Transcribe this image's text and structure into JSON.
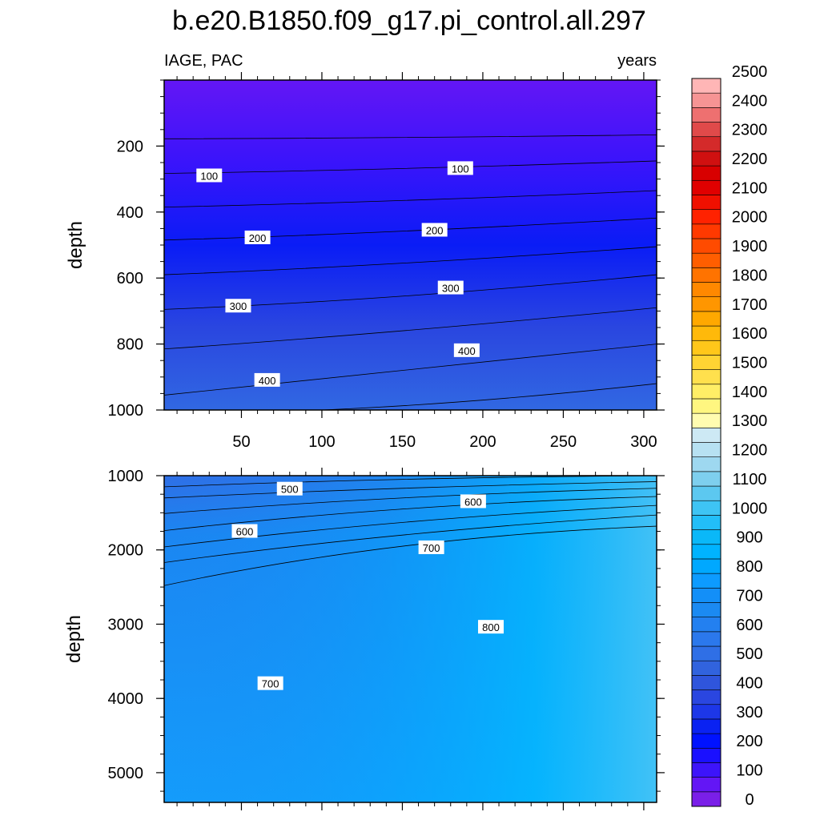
{
  "figure": {
    "title": "b.e20.B1850.f09_g17.pi_control.all.297",
    "left_string": "IAGE, PAC",
    "right_string": "years"
  },
  "chart_data": [
    {
      "type": "contour",
      "name": "upper-panel",
      "xlabel": "",
      "ylabel": "depth",
      "xlim": [
        2,
        308
      ],
      "ylim": [
        1000,
        0
      ],
      "y_ticks": [
        200,
        400,
        600,
        800,
        1000
      ],
      "x_ticks": [
        50,
        100,
        150,
        200,
        250,
        300
      ],
      "contour_lines": [
        {
          "value": 50,
          "x": [
            2,
            150,
            308
          ],
          "y": [
            178,
            174,
            166
          ]
        },
        {
          "value": 100,
          "x": [
            2,
            150,
            308
          ],
          "y": [
            283,
            268,
            245
          ]
        },
        {
          "value": 150,
          "x": [
            2,
            150,
            308
          ],
          "y": [
            385,
            365,
            335
          ]
        },
        {
          "value": 200,
          "x": [
            2,
            150,
            308
          ],
          "y": [
            485,
            458,
            418
          ]
        },
        {
          "value": 250,
          "x": [
            2,
            150,
            308
          ],
          "y": [
            590,
            555,
            505
          ]
        },
        {
          "value": 300,
          "x": [
            2,
            150,
            308
          ],
          "y": [
            695,
            655,
            590
          ]
        },
        {
          "value": 350,
          "x": [
            2,
            150,
            308
          ],
          "y": [
            815,
            760,
            690
          ]
        },
        {
          "value": 400,
          "x": [
            2,
            150,
            308
          ],
          "y": [
            955,
            880,
            800
          ]
        },
        {
          "value": 450,
          "x": [
            100,
            200,
            308
          ],
          "y": [
            1000,
            970,
            920
          ]
        }
      ],
      "line_labels": [
        {
          "text": "100",
          "x": 30,
          "y": 290
        },
        {
          "text": "100",
          "x": 186,
          "y": 268
        },
        {
          "text": "200",
          "x": 60,
          "y": 478
        },
        {
          "text": "200",
          "x": 170,
          "y": 455
        },
        {
          "text": "300",
          "x": 48,
          "y": 685
        },
        {
          "text": "300",
          "x": 180,
          "y": 630
        },
        {
          "text": "400",
          "x": 66,
          "y": 910
        },
        {
          "text": "400",
          "x": 190,
          "y": 820
        }
      ]
    },
    {
      "type": "contour",
      "name": "lower-panel",
      "xlabel": "",
      "ylabel": "depth",
      "xlim": [
        2,
        308
      ],
      "ylim": [
        5400,
        1000
      ],
      "y_ticks": [
        1000,
        2000,
        3000,
        4000,
        5000
      ],
      "x_ticks": [
        50,
        100,
        150,
        200,
        250,
        300
      ],
      "contour_lines": [
        {
          "value": 450,
          "x": [
            2,
            150,
            308
          ],
          "y": [
            1150,
            1050,
            1000
          ]
        },
        {
          "value": 500,
          "x": [
            2,
            150,
            308
          ],
          "y": [
            1300,
            1170,
            1080
          ]
        },
        {
          "value": 550,
          "x": [
            2,
            150,
            308
          ],
          "y": [
            1510,
            1300,
            1170
          ]
        },
        {
          "value": 600,
          "x": [
            2,
            150,
            308
          ],
          "y": [
            1740,
            1450,
            1280
          ]
        },
        {
          "value": 650,
          "x": [
            2,
            150,
            308
          ],
          "y": [
            1960,
            1630,
            1400
          ]
        },
        {
          "value": 700,
          "x": [
            2,
            150,
            308
          ],
          "y": [
            2170,
            1800,
            1530
          ]
        },
        {
          "value": 750,
          "x": [
            2,
            150,
            308
          ],
          "y": [
            2480,
            1950,
            1680
          ]
        }
      ],
      "line_labels": [
        {
          "text": "500",
          "x": 80,
          "y": 1180
        },
        {
          "text": "600",
          "x": 194,
          "y": 1350
        },
        {
          "text": "600",
          "x": 52,
          "y": 1750
        },
        {
          "text": "700",
          "x": 168,
          "y": 1970
        },
        {
          "text": "800",
          "x": 205,
          "y": 3040
        },
        {
          "text": "700",
          "x": 68,
          "y": 3800
        }
      ]
    },
    {
      "type": "colorbar",
      "name": "ideal-age-colorbar",
      "levels": [
        0,
        100,
        200,
        300,
        400,
        500,
        600,
        700,
        800,
        900,
        1000,
        1100,
        1200,
        1300,
        1400,
        1500,
        1600,
        1700,
        1800,
        1900,
        2000,
        2100,
        2200,
        2300,
        2400,
        2500
      ],
      "tick_labels": [
        "0",
        "100",
        "200",
        "300",
        "400",
        "500",
        "600",
        "700",
        "800",
        "900",
        "1000",
        "1100",
        "1200",
        "1300",
        "1400",
        "1500",
        "1600",
        "1700",
        "1800",
        "1900",
        "2000",
        "2100",
        "2200",
        "2300",
        "2400",
        "2500"
      ],
      "colors": [
        "#7a1fe8",
        "#6316f5",
        "#3d14fa",
        "#1a10ff",
        "#0012ff",
        "#0a22f2",
        "#1d37e8",
        "#2a46e0",
        "#2f55dc",
        "#3163de",
        "#2f6fe6",
        "#2b78ec",
        "#2380f0",
        "#1b8af2",
        "#138ff8",
        "#0d9bff",
        "#00a8ff",
        "#00b3ff",
        "#0ab8f8",
        "#22bef8",
        "#3ec4f4",
        "#5cc8f0",
        "#7ecfee",
        "#9ed8f0",
        "#b7e1f2",
        "#cde9f4",
        "#fffcb0",
        "#fff680",
        "#ffee66",
        "#ffe04d",
        "#ffd433",
        "#ffc71a",
        "#ffb90a",
        "#ffa800",
        "#ff9600",
        "#ff8800",
        "#ff7300",
        "#ff5e00",
        "#ff4b00",
        "#ff3900",
        "#ff2200",
        "#f01000",
        "#e00000",
        "#d80000",
        "#d01010",
        "#d42a2a",
        "#e04a4a",
        "#ee7070",
        "#f69494",
        "#ffb6b6"
      ]
    }
  ]
}
